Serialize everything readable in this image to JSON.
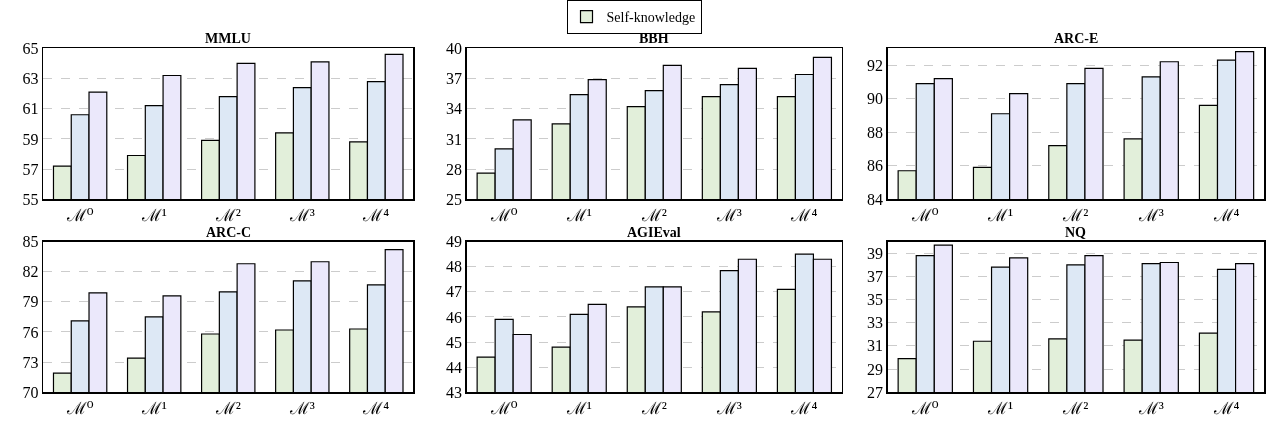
{
  "chart_data": [
    {
      "type": "bar",
      "title": "MMLU",
      "categories": [
        "ℳ⁰",
        "ℳ¹",
        "ℳ²",
        "ℳ³",
        "ℳ⁴"
      ],
      "ylim": [
        55,
        65
      ],
      "yticks": [
        55,
        57,
        59,
        61,
        63,
        65
      ],
      "grid": "y",
      "legend": "top",
      "series": [
        {
          "name": "Self-knowledge",
          "color": "#e2efda",
          "values": [
            57.2,
            57.9,
            58.9,
            59.4,
            58.8
          ]
        },
        {
          "color": "#dde8f5",
          "values": [
            60.6,
            61.2,
            61.8,
            62.4,
            62.8
          ]
        },
        {
          "color": "#ebe8fb",
          "values": [
            62.1,
            63.2,
            64.0,
            64.1,
            64.6
          ]
        }
      ]
    },
    {
      "type": "bar",
      "title": "BBH",
      "categories": [
        "ℳ⁰",
        "ℳ¹",
        "ℳ²",
        "ℳ³",
        "ℳ⁴"
      ],
      "ylim": [
        25,
        40
      ],
      "yticks": [
        25,
        28,
        31,
        34,
        37,
        40
      ],
      "grid": "y",
      "series": [
        {
          "color": "#e2efda",
          "values": [
            27.6,
            32.5,
            34.2,
            35.2,
            35.2
          ]
        },
        {
          "color": "#dde8f5",
          "values": [
            30.0,
            35.4,
            35.8,
            36.4,
            37.4
          ]
        },
        {
          "color": "#ebe8fb",
          "values": [
            32.9,
            36.9,
            38.3,
            38.0,
            39.1
          ]
        }
      ]
    },
    {
      "type": "bar",
      "title": "ARC-E",
      "categories": [
        "ℳ⁰",
        "ℳ¹",
        "ℳ²",
        "ℳ³",
        "ℳ⁴"
      ],
      "ylim": [
        84,
        93
      ],
      "yticks": [
        84,
        86,
        88,
        90,
        92
      ],
      "grid": "y",
      "series": [
        {
          "color": "#e2efda",
          "values": [
            85.7,
            85.9,
            87.2,
            87.6,
            89.6
          ]
        },
        {
          "color": "#dde8f5",
          "values": [
            90.9,
            89.1,
            90.9,
            91.3,
            92.3
          ]
        },
        {
          "color": "#ebe8fb",
          "values": [
            91.2,
            90.3,
            91.8,
            92.2,
            92.8
          ]
        }
      ]
    },
    {
      "type": "bar",
      "title": "ARC-C",
      "categories": [
        "ℳ⁰",
        "ℳ¹",
        "ℳ²",
        "ℳ³",
        "ℳ⁴"
      ],
      "ylim": [
        70,
        85
      ],
      "yticks": [
        70,
        73,
        76,
        79,
        82,
        85
      ],
      "grid": "y",
      "series": [
        {
          "color": "#e2efda",
          "values": [
            71.9,
            73.4,
            75.8,
            76.2,
            76.3
          ]
        },
        {
          "color": "#dde8f5",
          "values": [
            77.1,
            77.5,
            80.0,
            81.1,
            80.7
          ]
        },
        {
          "color": "#ebe8fb",
          "values": [
            79.9,
            79.6,
            82.8,
            83.0,
            84.2
          ]
        }
      ]
    },
    {
      "type": "bar",
      "title": "AGIEval",
      "categories": [
        "ℳ⁰",
        "ℳ¹",
        "ℳ²",
        "ℳ³",
        "ℳ⁴"
      ],
      "ylim": [
        43,
        49
      ],
      "yticks": [
        43,
        44,
        45,
        46,
        47,
        48,
        49
      ],
      "grid": "y",
      "series": [
        {
          "color": "#e2efda",
          "values": [
            44.4,
            44.8,
            46.4,
            46.2,
            47.1
          ]
        },
        {
          "color": "#dde8f5",
          "values": [
            45.9,
            46.1,
            47.2,
            47.85,
            48.5
          ]
        },
        {
          "color": "#ebe8fb",
          "values": [
            45.3,
            46.5,
            47.2,
            48.3,
            48.3
          ]
        }
      ]
    },
    {
      "type": "bar",
      "title": "NQ",
      "categories": [
        "ℳ⁰",
        "ℳ¹",
        "ℳ²",
        "ℳ³",
        "ℳ⁴"
      ],
      "ylim": [
        27,
        40
      ],
      "yticks": [
        27,
        29,
        31,
        33,
        35,
        37,
        39
      ],
      "grid": "y",
      "series": [
        {
          "color": "#e2efda",
          "values": [
            29.9,
            31.4,
            31.6,
            31.5,
            32.1
          ]
        },
        {
          "color": "#dde8f5",
          "values": [
            38.8,
            37.8,
            38.0,
            38.1,
            37.6
          ]
        },
        {
          "color": "#ebe8fb",
          "values": [
            39.7,
            38.6,
            38.8,
            38.2,
            38.1
          ]
        }
      ]
    }
  ]
}
